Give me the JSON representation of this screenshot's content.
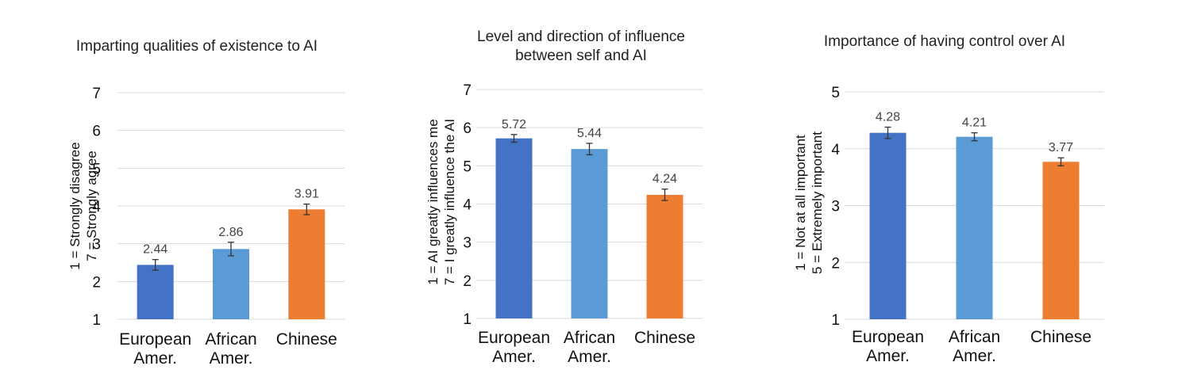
{
  "chart_data": [
    {
      "type": "bar",
      "title_lines": [
        "Imparting qualities of existence to AI"
      ],
      "ylabel_lines": [
        "1 = Strongly disagree",
        "7 = Strongly agree"
      ],
      "categories": [
        [
          "European",
          "Amer."
        ],
        [
          "African",
          "Amer."
        ],
        [
          "Chinese"
        ]
      ],
      "values": [
        2.44,
        2.86,
        3.91
      ],
      "value_labels": [
        "2.44",
        "2.86",
        "3.91"
      ],
      "error": [
        0.14,
        0.18,
        0.14
      ],
      "ylim": [
        1,
        7
      ],
      "yticks": [
        "1",
        "2",
        "3",
        "4",
        "5",
        "6",
        "7"
      ],
      "colors": [
        "#4472c4",
        "#5b9bd5",
        "#ed7d31"
      ],
      "grid": true
    },
    {
      "type": "bar",
      "title_lines": [
        "Level and direction of influence",
        "between self and AI"
      ],
      "ylabel_lines": [
        "1 = AI greatly influences me",
        "7 = I greatly influence the AI"
      ],
      "categories": [
        [
          "European",
          "Amer."
        ],
        [
          "African",
          "Amer."
        ],
        [
          "Chinese"
        ]
      ],
      "values": [
        5.72,
        5.44,
        4.24
      ],
      "value_labels": [
        "5.72",
        "5.44",
        "4.24"
      ],
      "error": [
        0.1,
        0.15,
        0.15
      ],
      "ylim": [
        1,
        7
      ],
      "yticks": [
        "1",
        "2",
        "3",
        "4",
        "5",
        "6",
        "7"
      ],
      "colors": [
        "#4472c4",
        "#5b9bd5",
        "#ed7d31"
      ],
      "grid": true
    },
    {
      "type": "bar",
      "title_lines": [
        "Importance of having control over AI"
      ],
      "ylabel_lines": [
        "1 = Not at all important",
        "5 = Extremely important"
      ],
      "categories": [
        [
          "European",
          "Amer."
        ],
        [
          "African",
          "Amer."
        ],
        [
          "Chinese"
        ]
      ],
      "values": [
        4.28,
        4.21,
        3.77
      ],
      "value_labels": [
        "4.28",
        "4.21",
        "3.77"
      ],
      "error": [
        0.1,
        0.07,
        0.07
      ],
      "ylim": [
        1,
        5
      ],
      "yticks": [
        "1",
        "2",
        "3",
        "4",
        "5"
      ],
      "colors": [
        "#4472c4",
        "#5b9bd5",
        "#ed7d31"
      ],
      "grid": true
    }
  ]
}
